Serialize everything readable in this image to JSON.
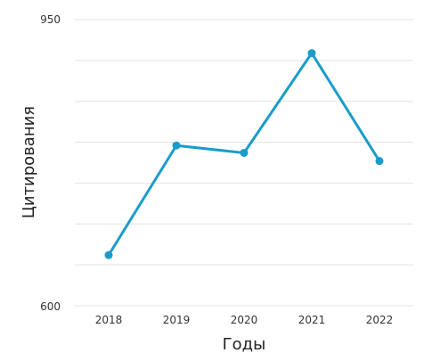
{
  "chart_data": {
    "type": "line",
    "xlabel": "Годы",
    "ylabel": "Цитирования",
    "categories": [
      "2018",
      "2019",
      "2020",
      "2021",
      "2022"
    ],
    "series": [
      {
        "values": [
          662,
          796,
          787,
          909,
          777
        ]
      }
    ],
    "ylim": [
      600,
      950
    ],
    "y_tick_labels": [
      "950",
      "600"
    ],
    "grid_count": 7,
    "grid": true,
    "legend": "none",
    "line_color": "#1a9cc9"
  }
}
